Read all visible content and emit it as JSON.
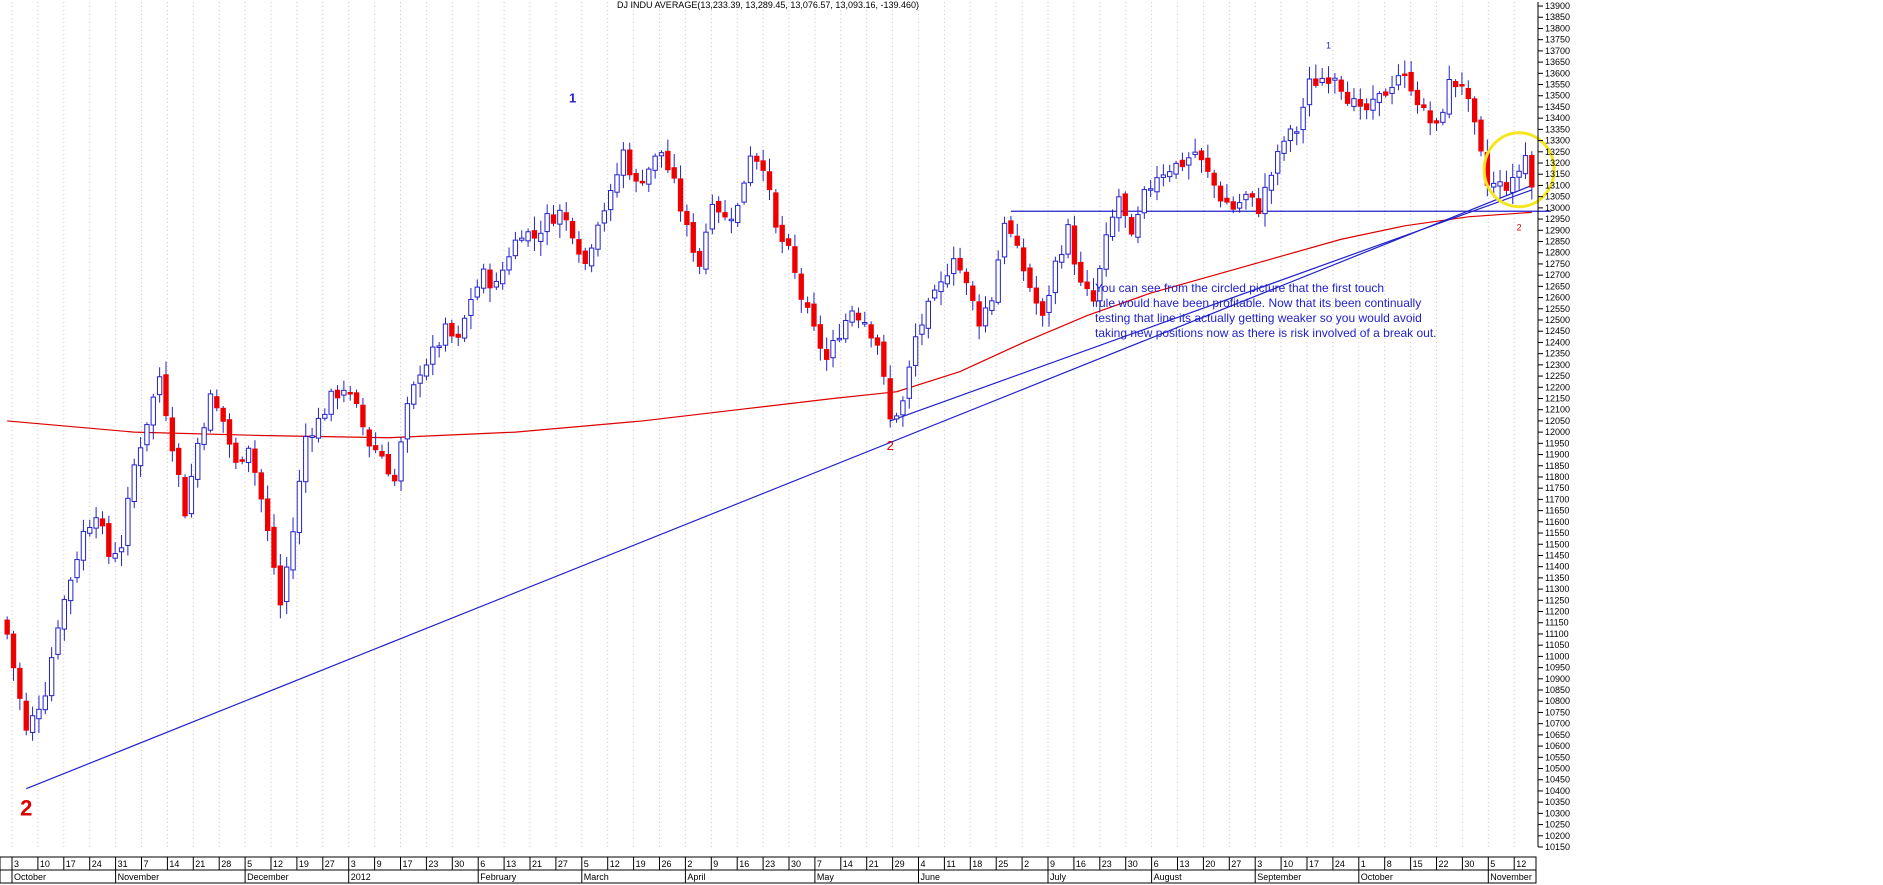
{
  "header": "DJ INDU AVERAGE(13,233.39, 13,289.45, 13,076.57, 13,093.16, -139.460)",
  "colors": {
    "up": "#ffffff",
    "down": "#ee0000",
    "wick": "#2222cc",
    "ma": "#dd0000",
    "trend": "#2222cc",
    "circle": "#f5e61c",
    "grid": "#c8c8c8",
    "text": "#000000"
  },
  "wave_labels": [
    "1",
    "2",
    "2",
    "1",
    "2"
  ],
  "annotation": [
    "You can see from the circled picture that the first touch",
    "rule would have been profitable. Now that its been continually",
    "testing that line its actually getting weaker so you would avoid",
    "taking new positions now as there is risk involved of a break out."
  ],
  "x_day_labels": [
    "3",
    "10",
    "17",
    "24",
    "31",
    "7",
    "14",
    "21",
    "28",
    "5",
    "12",
    "19",
    "27",
    "3",
    "9",
    "17",
    "23",
    "30",
    "6",
    "13",
    "21",
    "27",
    "5",
    "12",
    "19",
    "26",
    "2",
    "9",
    "16",
    "23",
    "30",
    "7",
    "14",
    "21",
    "29",
    "4",
    "11",
    "18",
    "25",
    "2",
    "9",
    "16",
    "23",
    "30",
    "6",
    "13",
    "20",
    "27",
    "3",
    "10",
    "17",
    "24",
    "1",
    "8",
    "15",
    "22",
    "30",
    "5",
    "12"
  ],
  "x_month_labels": [
    "October",
    "November",
    "December",
    "2012",
    "February",
    "March",
    "April",
    "May",
    "June",
    "July",
    "August",
    "September",
    "October",
    "November"
  ],
  "chart_data": {
    "type": "candlestick",
    "title": "DJ INDU AVERAGE",
    "ohlc_summary": {
      "open": 13233.39,
      "high": 13289.45,
      "low": 13076.57,
      "close": 13093.16,
      "change": -139.46
    },
    "y_axis": {
      "min": 10150,
      "max": 13900,
      "step": 50,
      "side": "right",
      "tick_labels": [
        "10150",
        "10200",
        "10250",
        "10300",
        "10350",
        "10400",
        "10450",
        "10500",
        "10550",
        "10600",
        "10650",
        "10700",
        "10750",
        "10800",
        "10850",
        "10900",
        "10950",
        "11000",
        "11050",
        "11100",
        "11150",
        "11200",
        "11250",
        "11300",
        "11350",
        "11400",
        "11450",
        "11500",
        "11550",
        "11600",
        "11650",
        "11700",
        "11750",
        "11800",
        "11850",
        "11900",
        "11950",
        "12000",
        "12050",
        "12100",
        "12150",
        "12200",
        "12250",
        "12300",
        "12350",
        "12400",
        "12450",
        "12500",
        "12550",
        "12600",
        "12650",
        "12700",
        "12750",
        "12800",
        "12850",
        "12900",
        "12950",
        "13000",
        "13050",
        "13100",
        "13150",
        "13200",
        "13250",
        "13300",
        "13350",
        "13400",
        "13450",
        "13500",
        "13550",
        "13600",
        "13650",
        "13700",
        "13750",
        "13800",
        "13850",
        "13900"
      ]
    },
    "x_axis": {
      "period": "Oct 2011 – Nov 2012",
      "weekly_ticks": 59
    },
    "close_path": [
      [
        0,
        11100
      ],
      [
        3,
        10660
      ],
      [
        6,
        10850
      ],
      [
        8,
        11150
      ],
      [
        10,
        11350
      ],
      [
        12,
        11550
      ],
      [
        14,
        11650
      ],
      [
        16,
        11450
      ],
      [
        18,
        11500
      ],
      [
        20,
        11850
      ],
      [
        22,
        12050
      ],
      [
        24,
        12250
      ],
      [
        26,
        11950
      ],
      [
        28,
        11650
      ],
      [
        30,
        11950
      ],
      [
        32,
        12150
      ],
      [
        34,
        12050
      ],
      [
        36,
        11850
      ],
      [
        38,
        11950
      ],
      [
        40,
        11700
      ],
      [
        42,
        11400
      ],
      [
        43,
        11230
      ],
      [
        45,
        11560
      ],
      [
        47,
        11980
      ],
      [
        49,
        12050
      ],
      [
        51,
        12150
      ],
      [
        53,
        12200
      ],
      [
        55,
        12100
      ],
      [
        57,
        11950
      ],
      [
        59,
        11900
      ],
      [
        61,
        11780
      ],
      [
        63,
        12100
      ],
      [
        65,
        12280
      ],
      [
        67,
        12350
      ],
      [
        69,
        12450
      ],
      [
        71,
        12400
      ],
      [
        73,
        12600
      ],
      [
        75,
        12700
      ],
      [
        77,
        12650
      ],
      [
        79,
        12800
      ],
      [
        81,
        12900
      ],
      [
        83,
        12870
      ],
      [
        85,
        12950
      ],
      [
        87,
        12980
      ],
      [
        89,
        12900
      ],
      [
        91,
        12750
      ],
      [
        93,
        12950
      ],
      [
        95,
        13050
      ],
      [
        97,
        13250
      ],
      [
        99,
        13100
      ],
      [
        101,
        13180
      ],
      [
        103,
        13250
      ],
      [
        105,
        13100
      ],
      [
        107,
        12900
      ],
      [
        109,
        12750
      ],
      [
        111,
        13050
      ],
      [
        113,
        12950
      ],
      [
        115,
        13000
      ],
      [
        117,
        13250
      ],
      [
        119,
        13200
      ],
      [
        121,
        12900
      ],
      [
        123,
        12800
      ],
      [
        125,
        12600
      ],
      [
        127,
        12450
      ],
      [
        129,
        12320
      ],
      [
        131,
        12450
      ],
      [
        133,
        12550
      ],
      [
        135,
        12500
      ],
      [
        137,
        12400
      ],
      [
        139,
        12050
      ],
      [
        141,
        12130
      ],
      [
        143,
        12420
      ],
      [
        145,
        12550
      ],
      [
        147,
        12650
      ],
      [
        149,
        12800
      ],
      [
        151,
        12650
      ],
      [
        153,
        12500
      ],
      [
        155,
        12600
      ],
      [
        157,
        12950
      ],
      [
        159,
        12800
      ],
      [
        161,
        12650
      ],
      [
        163,
        12500
      ],
      [
        165,
        12750
      ],
      [
        167,
        12900
      ],
      [
        169,
        12650
      ],
      [
        171,
        12580
      ],
      [
        173,
        12850
      ],
      [
        175,
        13050
      ],
      [
        177,
        12850
      ],
      [
        179,
        13050
      ],
      [
        181,
        13150
      ],
      [
        183,
        13180
      ],
      [
        185,
        13200
      ],
      [
        187,
        13250
      ],
      [
        189,
        13150
      ],
      [
        191,
        13050
      ],
      [
        193,
        13000
      ],
      [
        195,
        13050
      ],
      [
        197,
        13000
      ],
      [
        199,
        13150
      ],
      [
        201,
        13300
      ],
      [
        203,
        13350
      ],
      [
        205,
        13550
      ],
      [
        207,
        13580
      ],
      [
        209,
        13600
      ],
      [
        211,
        13500
      ],
      [
        213,
        13420
      ],
      [
        215,
        13450
      ],
      [
        217,
        13520
      ],
      [
        219,
        13600
      ],
      [
        221,
        13550
      ],
      [
        223,
        13420
      ],
      [
        225,
        13350
      ],
      [
        227,
        13550
      ],
      [
        229,
        13560
      ],
      [
        231,
        13350
      ],
      [
        233,
        13100
      ],
      [
        235,
        13100
      ],
      [
        237,
        13107
      ],
      [
        239,
        13233
      ],
      [
        240,
        13093
      ]
    ],
    "series": [
      {
        "name": "Moving average",
        "points": [
          [
            0,
            12050
          ],
          [
            20,
            12000
          ],
          [
            40,
            11985
          ],
          [
            60,
            11975
          ],
          [
            80,
            12000
          ],
          [
            100,
            12050
          ],
          [
            115,
            12100
          ],
          [
            130,
            12150
          ],
          [
            140,
            12180
          ],
          [
            150,
            12270
          ],
          [
            160,
            12400
          ],
          [
            170,
            12520
          ],
          [
            180,
            12620
          ],
          [
            190,
            12700
          ],
          [
            200,
            12780
          ],
          [
            210,
            12860
          ],
          [
            220,
            12920
          ],
          [
            230,
            12960
          ],
          [
            240,
            12980
          ]
        ]
      }
    ],
    "trendlines": [
      {
        "from": [
          3,
          10410
        ],
        "to": [
          240,
          13100
        ]
      },
      {
        "from": [
          139,
          12050
        ],
        "to": [
          240,
          13080
        ]
      },
      {
        "from": [
          158,
          12985
        ],
        "to": [
          243,
          12985
        ]
      }
    ],
    "highlight": {
      "center": [
        238,
        13170
      ],
      "radius_x": 5.5,
      "radius_y_value": 330
    },
    "waves": [
      {
        "label": "1",
        "at": [
          89,
          13470
        ]
      },
      {
        "label": "2",
        "at": [
          139,
          11920
        ]
      },
      {
        "label": "2",
        "at": [
          3,
          10290
        ]
      },
      {
        "label": "1",
        "at": [
          208,
          13710
        ]
      },
      {
        "label": "2",
        "at": [
          238,
          12900
        ]
      }
    ]
  }
}
